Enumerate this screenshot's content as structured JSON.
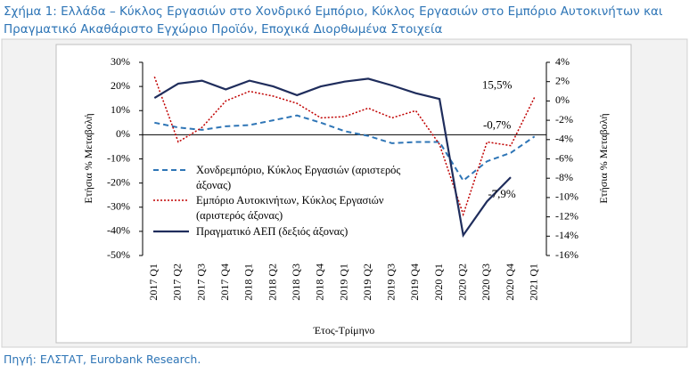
{
  "chart_data": {
    "type": "line",
    "title": "Σχήμα 1: Ελλάδα – Κύκλος Εργασιών στο Χονδρικό Εμπόριο, Κύκλος Εργασιών στο Εμπόριο Αυτοκινήτων και Πραγματικό Ακαθάριστο Εγχώριο Προϊόν, Εποχικά Διορθωμένα Στοιχεία",
    "source": "Πηγή: ΕΛΣΤΑΤ, Eurobank Research.",
    "x_label": "Έτος-Τρίμηνο",
    "y_label": "Ετήσια % Μεταβολή",
    "y2_label": "Ετήσια % Μεταβολή",
    "categories": [
      "2017 Q1",
      "2017 Q2",
      "2017 Q3",
      "2017 Q4",
      "2018 Q1",
      "2018 Q2",
      "2018 Q3",
      "2018 Q4",
      "2019 Q1",
      "2019 Q2",
      "2019 Q3",
      "2019 Q4",
      "2020 Q1",
      "2020 Q2",
      "2020 Q3",
      "2020 Q4",
      "2021 Q1"
    ],
    "series": [
      {
        "name": "Χονδρεμπόριο, Κύκλος Εργασιών (αριστερός άξονας)",
        "color": "#2e75b6",
        "style": "dashed",
        "axis": "y",
        "values": [
          5,
          3,
          2,
          3.5,
          4,
          6,
          8,
          5,
          1.5,
          -0.5,
          -3.5,
          -3,
          -3,
          -19,
          -11,
          -7.5,
          -0.7
        ],
        "value_labels": [
          null,
          null,
          null,
          null,
          null,
          null,
          null,
          null,
          null,
          null,
          null,
          null,
          null,
          null,
          null,
          null,
          "-0,7%"
        ]
      },
      {
        "name": "Εμπόριο Αυτοκινήτων, Κύκλος Εργασιών (αριστερός άξονας)",
        "color": "#c00000",
        "style": "dotted",
        "axis": "y",
        "values": [
          24,
          -3,
          3,
          14,
          18,
          16,
          13,
          7,
          7.5,
          11,
          7,
          10,
          -4,
          -33,
          -3,
          -4.5,
          15.5
        ],
        "value_labels": [
          null,
          null,
          null,
          null,
          null,
          null,
          null,
          null,
          null,
          null,
          null,
          null,
          null,
          null,
          null,
          null,
          "15,5%"
        ]
      },
      {
        "name": "Πραγματικό ΑΕΠ (δεξιός άξονας)",
        "color": "#1f2d5c",
        "style": "solid",
        "axis": "y2",
        "values": [
          0.3,
          1.8,
          2.1,
          1.2,
          2.1,
          1.5,
          0.6,
          1.5,
          2.0,
          2.3,
          1.6,
          0.8,
          0.2,
          -13.9,
          -10.4,
          -7.9,
          null
        ],
        "value_labels": [
          null,
          null,
          null,
          null,
          null,
          null,
          null,
          null,
          null,
          null,
          null,
          null,
          null,
          null,
          null,
          "-7,9%",
          null
        ]
      }
    ],
    "ylim": [
      -50,
      30
    ],
    "yticks": [
      {
        "value": 30,
        "label": "30%"
      },
      {
        "value": 20,
        "label": "20%"
      },
      {
        "value": 10,
        "label": "10%"
      },
      {
        "value": 0,
        "label": "0%"
      },
      {
        "value": -10,
        "label": "-10%"
      },
      {
        "value": -20,
        "label": "-20%"
      },
      {
        "value": -30,
        "label": "-30%"
      },
      {
        "value": -40,
        "label": "-40%"
      },
      {
        "value": -50,
        "label": "-50%"
      }
    ],
    "y2lim": [
      -16,
      4
    ],
    "y2ticks": [
      {
        "value": 4,
        "label": "4%"
      },
      {
        "value": 2,
        "label": "2%"
      },
      {
        "value": 0,
        "label": "0%"
      },
      {
        "value": -2,
        "label": "-2%"
      },
      {
        "value": -4,
        "label": "-4%"
      },
      {
        "value": -6,
        "label": "-6%"
      },
      {
        "value": -8,
        "label": "-8%"
      },
      {
        "value": -10,
        "label": "-10%"
      },
      {
        "value": -12,
        "label": "-12%"
      },
      {
        "value": -14,
        "label": "-14%"
      },
      {
        "value": -16,
        "label": "-16%"
      }
    ],
    "grid": false
  }
}
